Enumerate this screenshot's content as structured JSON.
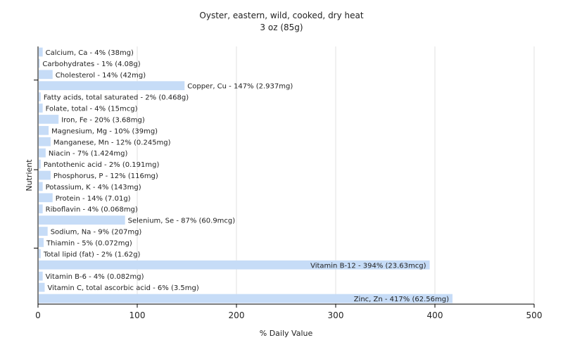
{
  "chart_data": {
    "type": "bar",
    "orientation": "horizontal",
    "title": "Oyster, eastern, wild, cooked, dry heat",
    "subtitle": "3 oz (85g)",
    "xlabel": "% Daily Value",
    "ylabel": "Nutrient",
    "xlim": [
      0,
      500
    ],
    "xticks": [
      0,
      100,
      200,
      300,
      400,
      500
    ],
    "grid": true,
    "bar_color": "#c6dcf7",
    "categories": [
      "Calcium, Ca",
      "Carbohydrates",
      "Cholesterol",
      "Copper, Cu",
      "Fatty acids, total saturated",
      "Folate, total",
      "Iron, Fe",
      "Magnesium, Mg",
      "Manganese, Mn",
      "Niacin",
      "Pantothenic acid",
      "Phosphorus, P",
      "Potassium, K",
      "Protein",
      "Riboflavin",
      "Selenium, Se",
      "Sodium, Na",
      "Thiamin",
      "Total lipid (fat)",
      "Vitamin B-12",
      "Vitamin B-6",
      "Vitamin C, total ascorbic acid",
      "Zinc, Zn"
    ],
    "values": [
      4,
      1,
      14,
      147,
      2,
      4,
      20,
      10,
      12,
      7,
      2,
      12,
      4,
      14,
      4,
      87,
      9,
      5,
      2,
      394,
      4,
      6,
      417
    ],
    "labels": [
      "Calcium, Ca - 4% (38mg)",
      "Carbohydrates - 1% (4.08g)",
      "Cholesterol - 14% (42mg)",
      "Copper, Cu - 147% (2.937mg)",
      "Fatty acids, total saturated - 2% (0.468g)",
      "Folate, total - 4% (15mcg)",
      "Iron, Fe - 20% (3.68mg)",
      "Magnesium, Mg - 10% (39mg)",
      "Manganese, Mn - 12% (0.245mg)",
      "Niacin - 7% (1.424mg)",
      "Pantothenic acid - 2% (0.191mg)",
      "Phosphorus, P - 12% (116mg)",
      "Potassium, K - 4% (143mg)",
      "Protein - 14% (7.01g)",
      "Riboflavin - 4% (0.068mg)",
      "Selenium, Se - 87% (60.9mcg)",
      "Sodium, Na - 9% (207mg)",
      "Thiamin - 5% (0.072mg)",
      "Total lipid (fat) - 2% (1.62g)",
      "Vitamin B-12 - 394% (23.63mcg)",
      "Vitamin B-6 - 4% (0.082mg)",
      "Vitamin C, total ascorbic acid - 6% (3.5mg)",
      "Zinc, Zn - 417% (62.56mg)"
    ]
  }
}
